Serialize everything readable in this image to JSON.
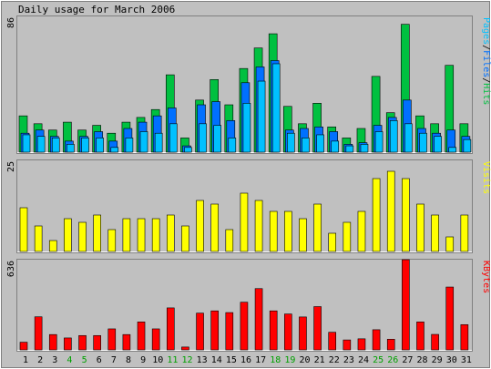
{
  "chart_data": {
    "type": "bar",
    "title": "Daily usage for March 2006",
    "categories": [
      "1",
      "2",
      "3",
      "4",
      "5",
      "6",
      "7",
      "8",
      "9",
      "10",
      "11",
      "12",
      "13",
      "14",
      "15",
      "16",
      "17",
      "18",
      "19",
      "20",
      "21",
      "22",
      "23",
      "24",
      "25",
      "26",
      "27",
      "28",
      "29",
      "30",
      "31"
    ],
    "weekend_days": [
      "4",
      "5",
      "11",
      "12",
      "18",
      "19",
      "25",
      "26"
    ],
    "colors": {
      "background": "#c0c0c0",
      "plot_background": "#c0c0c0",
      "hits": "#00c040",
      "files": "#0070ff",
      "pages": "#00c0ff",
      "visits": "#ffff00",
      "kbytes": "#ff0000",
      "weekend_label": "#00a000",
      "weekday_label": "#000000"
    },
    "panels": [
      {
        "id": "hits-files-pages",
        "ymax_label": "86",
        "ylim": [
          0,
          86
        ],
        "legend_parts": [
          {
            "text": "Pages",
            "color": "#00c0ff"
          },
          {
            "text": "/",
            "color": "#000000"
          },
          {
            "text": "Files",
            "color": "#0070ff"
          },
          {
            "text": "/",
            "color": "#000000"
          },
          {
            "text": "Hits",
            "color": "#00c040"
          }
        ],
        "series": [
          {
            "key": "hits",
            "values": [
              23,
              18,
              14,
              19,
              14,
              17,
              12,
              19,
              22,
              27,
              49,
              9,
              33,
              46,
              30,
              53,
              66,
              75,
              29,
              18,
              31,
              16,
              9,
              15,
              48,
              25,
              81,
              23,
              18,
              55,
              18
            ]
          },
          {
            "key": "files",
            "values": [
              12,
              14,
              10,
              7,
              10,
              13,
              7,
              15,
              19,
              23,
              28,
              4,
              30,
              32,
              20,
              44,
              54,
              58,
              14,
              15,
              16,
              13,
              5,
              6,
              17,
              22,
              33,
              15,
              12,
              14,
              10
            ]
          },
          {
            "key": "pages",
            "values": [
              11,
              10,
              9,
              5,
              9,
              9,
              3,
              9,
              13,
              12,
              18,
              3,
              18,
              17,
              9,
              31,
              45,
              56,
              12,
              9,
              11,
              7,
              4,
              5,
              13,
              20,
              18,
              12,
              10,
              3,
              8
            ]
          }
        ]
      },
      {
        "id": "visits",
        "ymax_label": "25",
        "ylim": [
          0,
          25
        ],
        "legend_parts": [
          {
            "text": "Visits",
            "color": "#ffff00"
          }
        ],
        "series": [
          {
            "key": "visits",
            "values": [
              12,
              7,
              3,
              9,
              8,
              10,
              6,
              9,
              9,
              9,
              10,
              7,
              14,
              13,
              6,
              16,
              14,
              11,
              11,
              9,
              13,
              5,
              8,
              11,
              20,
              22,
              20,
              13,
              10,
              4,
              10
            ]
          }
        ]
      },
      {
        "id": "kbytes",
        "ymax_label": "636",
        "ylim": [
          0,
          636
        ],
        "legend_parts": [
          {
            "text": "KBytes",
            "color": "#ff0000"
          }
        ],
        "series": [
          {
            "key": "kbytes",
            "values": [
              54,
              233,
              108,
              84,
              101,
              101,
              148,
              108,
              197,
              148,
              296,
              20,
              259,
              275,
              263,
              336,
              432,
              275,
              253,
              232,
              305,
              124,
              70,
              78,
              142,
              75,
              636,
              197,
              109,
              443,
              178
            ]
          }
        ]
      }
    ]
  }
}
